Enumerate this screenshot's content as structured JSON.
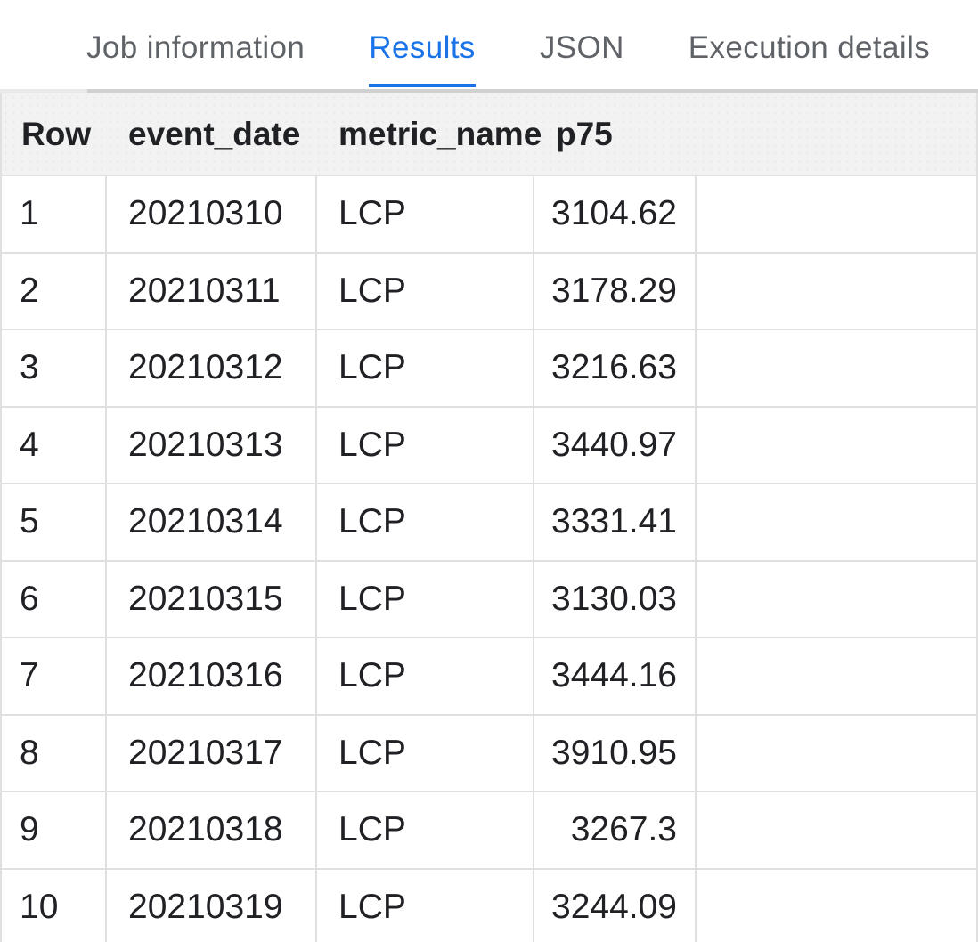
{
  "tab_bar": {
    "tabs": [
      {
        "label": "Job information",
        "active": false
      },
      {
        "label": "Results",
        "active": true
      },
      {
        "label": "JSON",
        "active": false
      },
      {
        "label": "Execution details",
        "active": false
      }
    ]
  },
  "results_table": {
    "columns": [
      "Row",
      "event_date",
      "metric_name",
      "p75"
    ],
    "rows": [
      [
        "1",
        "20210310",
        "LCP",
        "3104.62"
      ],
      [
        "2",
        "20210311",
        "LCP",
        "3178.29"
      ],
      [
        "3",
        "20210312",
        "LCP",
        "3216.63"
      ],
      [
        "4",
        "20210313",
        "LCP",
        "3440.97"
      ],
      [
        "5",
        "20210314",
        "LCP",
        "3331.41"
      ],
      [
        "6",
        "20210315",
        "LCP",
        "3130.03"
      ],
      [
        "7",
        "20210316",
        "LCP",
        "3444.16"
      ],
      [
        "8",
        "20210317",
        "LCP",
        "3910.95"
      ],
      [
        "9",
        "20210318",
        "LCP",
        "3267.3"
      ],
      [
        "10",
        "20210319",
        "LCP",
        "3244.09"
      ]
    ]
  },
  "colors": {
    "active_tab": "#1a73e8",
    "inactive_tab_text": "#5f6368",
    "header_background": "#f2f2f2",
    "body_text": "#202124",
    "grid_line": "#e0e0e0",
    "scrollbar_track": "#e9e9e9",
    "scrollbar_thumb": "#d0d0d0"
  }
}
